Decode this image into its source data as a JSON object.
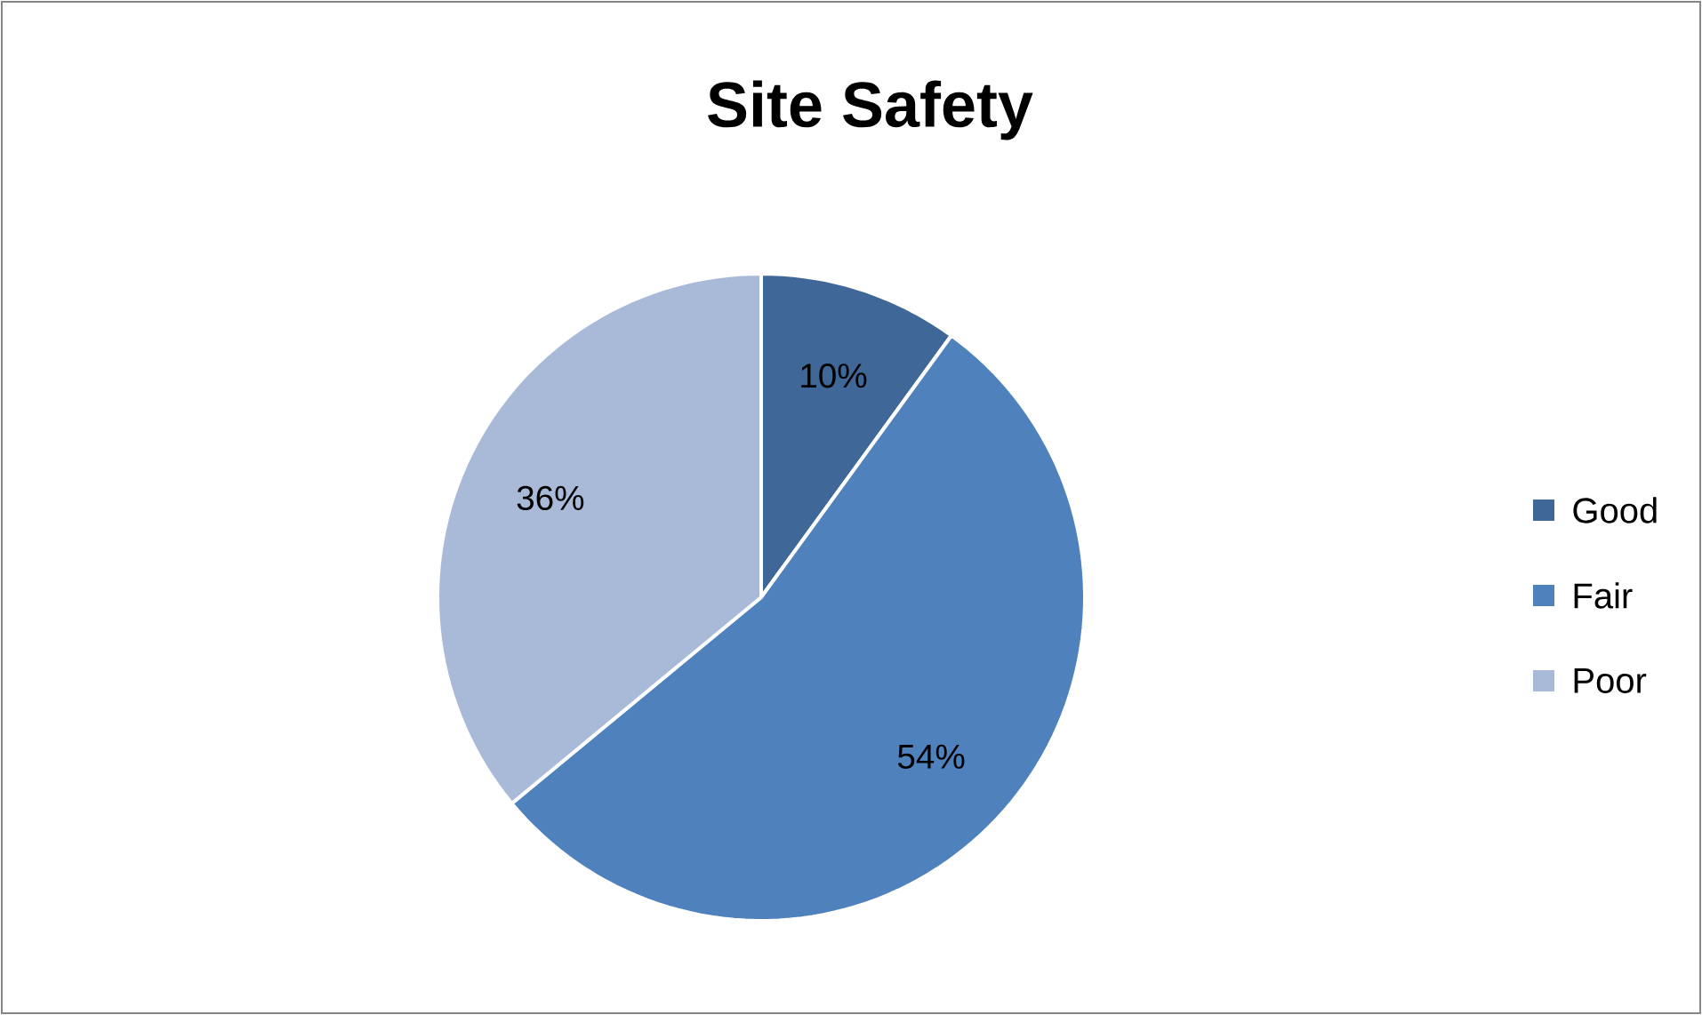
{
  "chart_data": {
    "type": "pie",
    "title": "Site Safety",
    "categories": [
      "Good",
      "Fair",
      "Poor"
    ],
    "values": [
      10,
      54,
      36
    ],
    "value_labels": [
      "10%",
      "54%",
      "36%"
    ],
    "colors": [
      "#3f6797",
      "#4f81bd",
      "#a9bad8"
    ],
    "legend": "right"
  }
}
